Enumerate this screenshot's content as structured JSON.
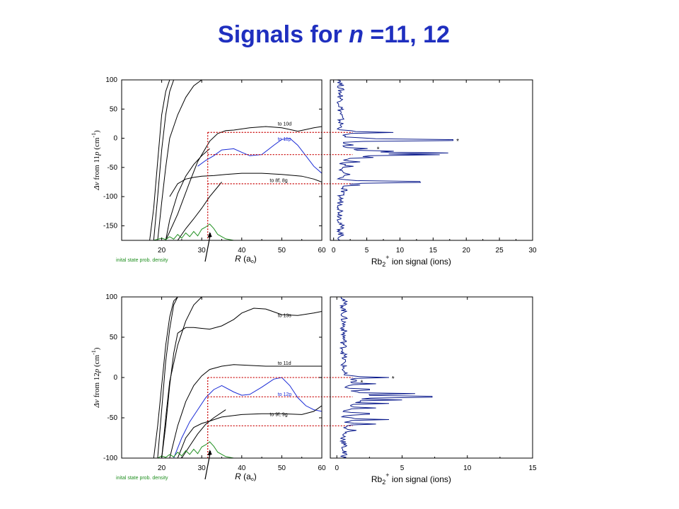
{
  "title": {
    "prefix": "Signals for ",
    "n": "n",
    "suffix": " =11, 12"
  },
  "colors": {
    "title": "#1f2fbf",
    "black_curve": "#000000",
    "p_state": "#1a2bd6",
    "signal": "#0a1a8c",
    "density": "#1f8f1f",
    "guide": "#cc1111"
  },
  "chart_data": [
    {
      "type": "line",
      "name": "potential-n11",
      "ylabel": "Δν from 11p (cm-1)",
      "ylabel_parts": {
        "prefix": "Δν",
        "mid": " from 11",
        "state": "p",
        "unit": " (cm",
        "exp": "-1",
        "close": ")"
      },
      "xlabel_parts": {
        "var": "R",
        "unit": " (a",
        "sub": "o",
        "close": ")"
      },
      "xlim": [
        10,
        60
      ],
      "ylim": [
        -175,
        100
      ],
      "grid": false,
      "xticks": [
        20,
        30,
        40,
        50,
        60
      ],
      "yticks": [
        -150,
        -100,
        -50,
        0,
        50,
        100
      ],
      "series": [
        {
          "name": "to 10d",
          "color": "black",
          "x": [
            21,
            24,
            27,
            29,
            32,
            34,
            36,
            38,
            42,
            46,
            50,
            54,
            56,
            58,
            60
          ],
          "y": [
            -175,
            -130,
            -75,
            -40,
            -5,
            8,
            13,
            14,
            18,
            20,
            18,
            12,
            15,
            18,
            20
          ]
        },
        {
          "name": "to 11p",
          "color": "blue",
          "x": [
            29,
            31,
            33,
            35,
            38,
            40,
            42,
            45,
            48,
            50,
            52,
            54,
            56,
            58,
            60
          ],
          "y": [
            -48,
            -38,
            -30,
            -20,
            -18,
            -24,
            -30,
            -28,
            -12,
            -2,
            0,
            -12,
            -30,
            -48,
            -60
          ]
        },
        {
          "name": "to 8f, 8g",
          "color": "black",
          "x": [
            22,
            24,
            26,
            28,
            30,
            33,
            36,
            40,
            45,
            50,
            55,
            58,
            60
          ],
          "y": [
            -100,
            -78,
            -70,
            -67,
            -65,
            -64,
            -62,
            -60,
            -60,
            -62,
            -65,
            -70,
            -75
          ]
        },
        {
          "name": "",
          "color": "black",
          "x": [
            17,
            18,
            19,
            20,
            21,
            22,
            23,
            24
          ],
          "y": [
            -175,
            -120,
            -40,
            40,
            80,
            100,
            100,
            100
          ]
        },
        {
          "name": "",
          "color": "black",
          "x": [
            18,
            19,
            20,
            21,
            22,
            23,
            24
          ],
          "y": [
            -175,
            -100,
            -20,
            40,
            80,
            100,
            100
          ]
        },
        {
          "name": "",
          "color": "black",
          "x": [
            19,
            20,
            21,
            22,
            24,
            26,
            28,
            30
          ],
          "y": [
            -175,
            -110,
            -50,
            0,
            40,
            70,
            90,
            100
          ]
        },
        {
          "name": "",
          "color": "black",
          "x": [
            21,
            22,
            24,
            26,
            28,
            30,
            32
          ],
          "y": [
            -175,
            -140,
            -95,
            -65,
            -45,
            -30,
            -18
          ]
        },
        {
          "name": "",
          "color": "black",
          "x": [
            24,
            26,
            28,
            30,
            32,
            35
          ],
          "y": [
            -175,
            -155,
            -138,
            -120,
            -100,
            -75
          ]
        }
      ],
      "density": {
        "label": "inital state prob. density",
        "x": [
          16,
          18,
          20,
          21,
          22,
          23,
          24,
          25,
          26,
          27,
          28,
          29,
          30,
          31,
          32,
          33,
          34,
          36,
          38
        ],
        "y": [
          0,
          0,
          1.5,
          0.5,
          2.5,
          0.8,
          4,
          1.5,
          5,
          2.5,
          6,
          3,
          7.5,
          9,
          11,
          8,
          4,
          1,
          0
        ]
      },
      "labels": [
        {
          "text": "to 10d",
          "x": 49,
          "y": 22
        },
        {
          "text": "to 11p",
          "x": 49,
          "y": -4
        },
        {
          "text": "to 8f, 8g",
          "x": 47,
          "y": -75
        }
      ],
      "guides": {
        "x": 31.5,
        "y": [
          10,
          -28,
          -78
        ]
      }
    },
    {
      "type": "line",
      "name": "signal-n11",
      "xlabel_parts": {
        "base": "Rb",
        "sub": "2",
        "sup": "+",
        "rest": " ion signal (ions)"
      },
      "xlim": [
        -0.5,
        30
      ],
      "ylim": [
        -175,
        100
      ],
      "grid": false,
      "xticks": [
        0,
        5,
        10,
        15,
        20,
        25,
        30
      ],
      "peaks": [
        {
          "y": 10,
          "x": 9
        },
        {
          "y": 0,
          "x": 3
        },
        {
          "y": -3,
          "x": 18
        },
        {
          "y": -12,
          "x": 3
        },
        {
          "y": -18,
          "x": 5
        },
        {
          "y": -22,
          "x": 7
        },
        {
          "y": -25,
          "x": 15
        },
        {
          "y": -28,
          "x": 16
        },
        {
          "y": -33,
          "x": 6
        },
        {
          "y": -40,
          "x": 4
        },
        {
          "y": -48,
          "x": 3
        },
        {
          "y": -62,
          "x": 2.5
        },
        {
          "y": -75,
          "x": 13
        },
        {
          "y": -80,
          "x": 4
        },
        {
          "y": -88,
          "x": 2
        }
      ],
      "markers": [
        {
          "text": "*",
          "x": 18.5,
          "y": -3
        },
        {
          "text": "*",
          "x": 6.5,
          "y": -17
        }
      ]
    },
    {
      "type": "line",
      "name": "potential-n12",
      "ylabel": "Δν from 12p (cm-1)",
      "ylabel_parts": {
        "prefix": "Δν",
        "mid": " from 12",
        "state": "p",
        "unit": " (cm",
        "exp": "-1",
        "close": ")"
      },
      "xlabel_parts": {
        "var": "R",
        "unit": " (a",
        "sub": "o",
        "close": ")"
      },
      "xlim": [
        10,
        60
      ],
      "ylim": [
        -100,
        100
      ],
      "grid": false,
      "xticks": [
        20,
        30,
        40,
        50,
        60
      ],
      "yticks": [
        -100,
        -50,
        0,
        50,
        100
      ],
      "series": [
        {
          "name": "to 13s",
          "color": "black",
          "x": [
            20,
            21,
            22,
            23,
            24,
            26,
            28,
            30,
            32,
            35,
            38,
            40,
            43,
            46,
            50,
            54,
            58,
            60
          ],
          "y": [
            -100,
            -60,
            -10,
            30,
            55,
            62,
            62,
            61,
            60,
            64,
            72,
            80,
            86,
            85,
            78,
            77,
            80,
            82
          ]
        },
        {
          "name": "to 11d",
          "color": "black",
          "x": [
            22,
            24,
            26,
            28,
            30,
            32,
            35,
            38,
            42,
            46,
            50,
            54,
            58,
            60
          ],
          "y": [
            -100,
            -60,
            -30,
            -10,
            2,
            10,
            14,
            16,
            15,
            14,
            14,
            14,
            14,
            14
          ]
        },
        {
          "name": "to 12p",
          "color": "blue",
          "x": [
            23,
            25,
            27,
            29,
            31,
            33,
            35,
            38,
            40,
            42,
            45,
            48,
            50,
            52,
            54,
            56,
            58,
            60
          ],
          "y": [
            -100,
            -75,
            -55,
            -40,
            -25,
            -15,
            -10,
            -18,
            -22,
            -21,
            -12,
            -2,
            0,
            -10,
            -25,
            -35,
            -40,
            -42
          ]
        },
        {
          "name": "to 9f, 9g",
          "color": "black",
          "x": [
            24,
            26,
            28,
            30,
            32,
            35,
            40,
            45,
            50,
            55,
            58,
            60
          ],
          "y": [
            -100,
            -75,
            -62,
            -57,
            -54,
            -49,
            -46,
            -45,
            -45,
            -46,
            -42,
            -35
          ]
        },
        {
          "name": "",
          "color": "black",
          "x": [
            18,
            19,
            20,
            21,
            22,
            23,
            24
          ],
          "y": [
            -100,
            -60,
            -10,
            40,
            75,
            95,
            100
          ]
        },
        {
          "name": "",
          "color": "black",
          "x": [
            19,
            20,
            21,
            22,
            23,
            24
          ],
          "y": [
            -100,
            -40,
            20,
            60,
            90,
            100
          ]
        },
        {
          "name": "",
          "color": "black",
          "x": [
            20,
            21,
            22,
            24,
            26,
            28,
            30
          ],
          "y": [
            -100,
            -50,
            -5,
            40,
            70,
            90,
            100
          ]
        },
        {
          "name": "",
          "color": "black",
          "x": [
            25,
            27,
            29,
            31,
            33,
            36
          ],
          "y": [
            -100,
            -85,
            -70,
            -58,
            -50,
            -40
          ]
        }
      ],
      "density": {
        "label": "inital state prob. density",
        "x": [
          17,
          19,
          20,
          21,
          22,
          23,
          24,
          25,
          26,
          27,
          28,
          29,
          30,
          31,
          32,
          33,
          34,
          36,
          38
        ],
        "y": [
          0,
          0,
          1.5,
          0.5,
          2.5,
          0.8,
          4,
          1.5,
          5,
          2.5,
          6,
          3,
          7.5,
          9,
          11,
          8,
          4,
          1,
          0
        ]
      },
      "labels": [
        {
          "text": "to 13s",
          "x": 49,
          "y": 75
        },
        {
          "text": "to 11d",
          "x": 49,
          "y": 16
        },
        {
          "text": "to 12p",
          "x": 49,
          "y": -23
        },
        {
          "text": "to 9f, 9g",
          "x": 47,
          "y": -48
        }
      ],
      "guides": {
        "x": 31.5,
        "y": [
          0,
          -24,
          -60
        ]
      }
    },
    {
      "type": "line",
      "name": "signal-n12",
      "xlabel_parts": {
        "base": "Rb",
        "sub": "2",
        "sup": "+",
        "rest": " ion signal (ions)"
      },
      "xlim": [
        -0.5,
        15
      ],
      "ylim": [
        -100,
        100
      ],
      "grid": false,
      "xticks": [
        0,
        5,
        10,
        15
      ],
      "peaks": [
        {
          "y": 0,
          "x": 4
        },
        {
          "y": -4,
          "x": 1.5
        },
        {
          "y": -8,
          "x": 3
        },
        {
          "y": -15,
          "x": 2.5
        },
        {
          "y": -20,
          "x": 6
        },
        {
          "y": -24,
          "x": 7.3
        },
        {
          "y": -28,
          "x": 5
        },
        {
          "y": -32,
          "x": 4
        },
        {
          "y": -38,
          "x": 3
        },
        {
          "y": -45,
          "x": 2.5
        },
        {
          "y": -52,
          "x": 4
        },
        {
          "y": -58,
          "x": 3
        },
        {
          "y": -66,
          "x": 1.5
        }
      ],
      "markers": [
        {
          "text": "*",
          "x": 4.2,
          "y": 0
        },
        {
          "text": "*",
          "x": 1.8,
          "y": -5
        }
      ]
    }
  ]
}
